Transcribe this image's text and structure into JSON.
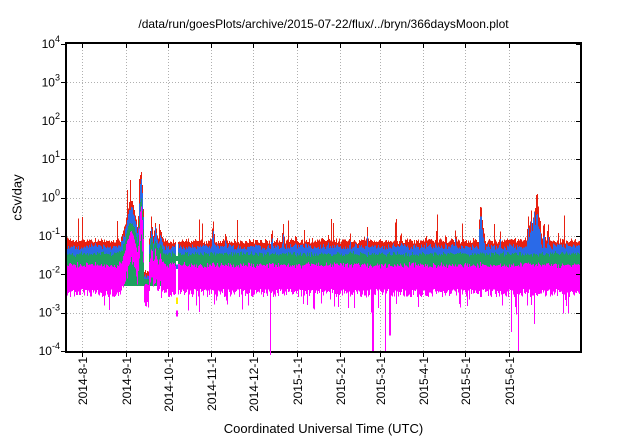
{
  "chart_data": {
    "type": "line",
    "title": "/data/run/goesPlots/archive/2015-07-22/flux/../bryn/366daysMoon.plot",
    "xlabel": "Coordinated Universal Time (UTC)",
    "ylabel": "cSv/day",
    "y_scale": "log10",
    "ylim": [
      0.0001,
      10000
    ],
    "y_tick_exponents": [
      4,
      3,
      2,
      1,
      0,
      -1,
      -2,
      -3,
      -4
    ],
    "x_start_date": "2014-07-21",
    "x_end_date": "2015-07-22",
    "span_days": 366,
    "grid": {
      "style": "dotted",
      "color": "#b0b0b0",
      "horizontal": true,
      "vertical": true
    },
    "legend": "none",
    "x_ticks": [
      {
        "label": "2014-8-1",
        "day": 11
      },
      {
        "label": "2014-9-1",
        "day": 42
      },
      {
        "label": "2014-10-1",
        "day": 72
      },
      {
        "label": "2014-11-1",
        "day": 103
      },
      {
        "label": "2014-12-1",
        "day": 133
      },
      {
        "label": "2015-1-1",
        "day": 164
      },
      {
        "label": "2015-2-1",
        "day": 195
      },
      {
        "label": "2015-3-1",
        "day": 223
      },
      {
        "label": "2015-4-1",
        "day": 254
      },
      {
        "label": "2015-5-1",
        "day": 284
      },
      {
        "label": "2015-6-1",
        "day": 315
      }
    ],
    "series": [
      {
        "name": "red-trace",
        "color": "#e82010",
        "baseline_log10": -1.13,
        "noise": 0.1,
        "typical_range_cSv_day": [
          0.05,
          0.12
        ]
      },
      {
        "name": "blue-trace",
        "color": "#2a6ae8",
        "baseline_log10": -1.28,
        "noise": 0.1,
        "typical_range_cSv_day": [
          0.035,
          0.07
        ]
      },
      {
        "name": "green-trace",
        "color": "#1fa05f",
        "baseline_log10": -1.47,
        "noise": 0.08,
        "typical_range_cSv_day": [
          0.025,
          0.045
        ]
      },
      {
        "name": "magenta-trace",
        "color": "#ff00ff",
        "band_top_log10": -1.76,
        "band_bottom_log10": -2.38,
        "noise": 0.09,
        "typical_range_cSv_day": [
          0.003,
          0.02
        ]
      }
    ],
    "events": {
      "storm": {
        "description": "large enhancement early September 2014, peak ~5 cSv/day (red), ~3 (blue), ~1 (green), ~0.4 (magenta)",
        "mound": {
          "center_day": 45.5,
          "sigma_days": 3.2,
          "amplitude_decades": 1.05
        },
        "spike": {
          "center_day": 52.6,
          "sigma_days": 1.3,
          "amplitude_decades": 1.82
        },
        "notch": {
          "start_day": 54.8,
          "end_day": 58.5,
          "description": "post-spike dropout, band collapses to ~0.003"
        },
        "aftershocks": [
          {
            "center_day": 60.0,
            "sigma_days": 0.7,
            "amplitude_decades": 0.55
          },
          {
            "center_day": 63.0,
            "sigma_days": 0.8,
            "amplitude_decades": 0.45
          },
          {
            "center_day": 66.5,
            "sigma_days": 0.9,
            "amplitude_decades": 0.3
          }
        ],
        "series_response": {
          "red": 1.0,
          "blue": 0.97,
          "green": 0.8,
          "magenta": 0.82
        }
      },
      "spikes": [
        {
          "day": 104,
          "red": -0.55,
          "blue": -0.8
        },
        {
          "day": 113,
          "red": -0.82,
          "blue": -1.0
        },
        {
          "day": 146,
          "red": -0.74,
          "blue": -0.95
        },
        {
          "day": 154,
          "red": -0.64,
          "blue": -0.92
        },
        {
          "day": 163,
          "red": -0.85,
          "blue": -1.05
        },
        {
          "day": 186,
          "red": -0.88,
          "blue": -1.08
        },
        {
          "day": 202,
          "red": -0.9,
          "blue": -1.1
        },
        {
          "day": 214,
          "red": -0.75,
          "blue": -1.0
        },
        {
          "day": 238,
          "red": -0.8,
          "blue": -1.05
        },
        {
          "day": 256,
          "red": -0.95,
          "blue": -1.12
        },
        {
          "day": 270,
          "red": -0.85,
          "blue": -1.05
        },
        {
          "day": 277,
          "red": -0.77,
          "blue": -1.0
        },
        {
          "day": 295,
          "red": -0.09,
          "blue": -0.33
        },
        {
          "day": 297,
          "red": -0.7,
          "blue": -0.95
        },
        {
          "day": 309,
          "red": -0.85,
          "blue": -1.05
        },
        {
          "day": 329,
          "red": -0.45,
          "blue": -0.75
        },
        {
          "day": 331,
          "red": -0.32,
          "blue": -0.6
        },
        {
          "day": 333,
          "red": -0.28,
          "blue": -0.3
        },
        {
          "day": 335,
          "red": 0.24,
          "blue": -0.28
        },
        {
          "day": 337,
          "red": -0.4,
          "blue": -0.7
        },
        {
          "day": 340,
          "red": -0.55,
          "blue": -0.85
        },
        {
          "day": 343,
          "red": -0.62,
          "blue": -0.95
        }
      ],
      "dropouts": [
        {
          "day": 78,
          "depth": -3.1,
          "data_gap": true,
          "dashes": [
            {
              "color": "#1fa05f",
              "top": -1.52,
              "bottom": -1.66
            },
            {
              "color": "#2a6ae8",
              "top": -1.74,
              "bottom": -1.86
            },
            {
              "color": "#ffee00",
              "top": -2.6,
              "bottom": -2.78
            },
            {
              "color": "#ff00ff",
              "top": -2.95,
              "bottom": -3.1
            }
          ]
        },
        {
          "day": 145,
          "depth": -4.1,
          "crosses_axis": true
        },
        {
          "day": 218,
          "depth": -4.0
        },
        {
          "day": 227,
          "depth": -4.0
        },
        {
          "day": 230,
          "depth": -3.6
        },
        {
          "day": 317,
          "depth": -3.5
        },
        {
          "day": 322,
          "depth": -4.1
        },
        {
          "day": 333,
          "depth": -3.3
        }
      ]
    }
  }
}
